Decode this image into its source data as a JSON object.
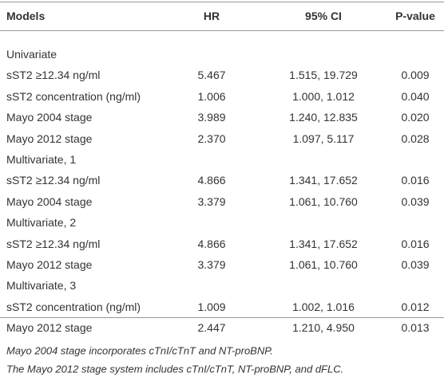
{
  "table": {
    "header": [
      "Models",
      "HR",
      "95% CI",
      "P-value"
    ],
    "rows": [
      [
        "Univariate"
      ],
      [
        "sST2 ≥12.34 ng/ml",
        "5.467",
        "1.515, 19.729",
        "0.009"
      ],
      [
        "sST2 concentration (ng/ml)",
        "1.006",
        "1.000, 1.012",
        "0.040"
      ],
      [
        "Mayo 2004 stage",
        "3.989",
        "1.240, 12.835",
        "0.020"
      ],
      [
        "Mayo 2012 stage",
        "2.370",
        "1.097, 5.117",
        "0.028"
      ],
      [
        "Multivariate, 1"
      ],
      [
        "sST2 ≥12.34 ng/ml",
        "4.866",
        "1.341, 17.652",
        "0.016"
      ],
      [
        "Mayo 2004 stage",
        "3.379",
        "1.061, 10.760",
        "0.039"
      ],
      [
        "Multivariate, 2"
      ],
      [
        "sST2 ≥12.34 ng/ml",
        "4.866",
        "1.341, 17.652",
        "0.016"
      ],
      [
        "Mayo 2012 stage",
        "3.379",
        "1.061, 10.760",
        "0.039"
      ],
      [
        "Multivariate, 3"
      ],
      [
        "sST2 concentration (ng/ml)",
        "1.009",
        "1.002, 1.016",
        "0.012"
      ],
      [
        "Mayo 2012 stage",
        "2.447",
        "1.210, 4.950",
        "0.013"
      ]
    ],
    "footnotes": [
      "Mayo 2004 stage incorporates cTnI/cTnT and NT-proBNP.",
      "The Mayo 2012 stage system includes cTnI/cTnT, NT-proBNP, and dFLC."
    ]
  }
}
